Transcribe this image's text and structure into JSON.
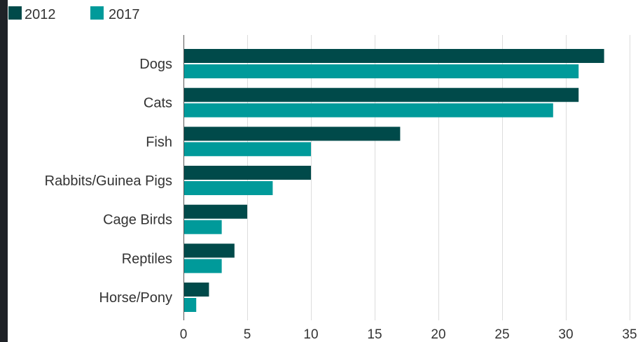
{
  "chart_data": {
    "type": "bar",
    "orientation": "horizontal",
    "categories": [
      "Dogs",
      "Cats",
      "Fish",
      "Rabbits/Guinea Pigs",
      "Cage Birds",
      "Reptiles",
      "Horse/Pony"
    ],
    "series": [
      {
        "name": "2012",
        "color": "#004a4a",
        "values": [
          33,
          31,
          17,
          10,
          5,
          4,
          2
        ]
      },
      {
        "name": "2017",
        "color": "#009a9a",
        "values": [
          31,
          29,
          10,
          7,
          3,
          3,
          1
        ]
      }
    ],
    "xticks": [
      "0",
      "5",
      "10",
      "15",
      "20",
      "25",
      "30",
      "35"
    ],
    "xlim": [
      0,
      35
    ],
    "title": "",
    "xlabel": "",
    "ylabel": "",
    "grid": true,
    "legend_position": "top-left"
  }
}
